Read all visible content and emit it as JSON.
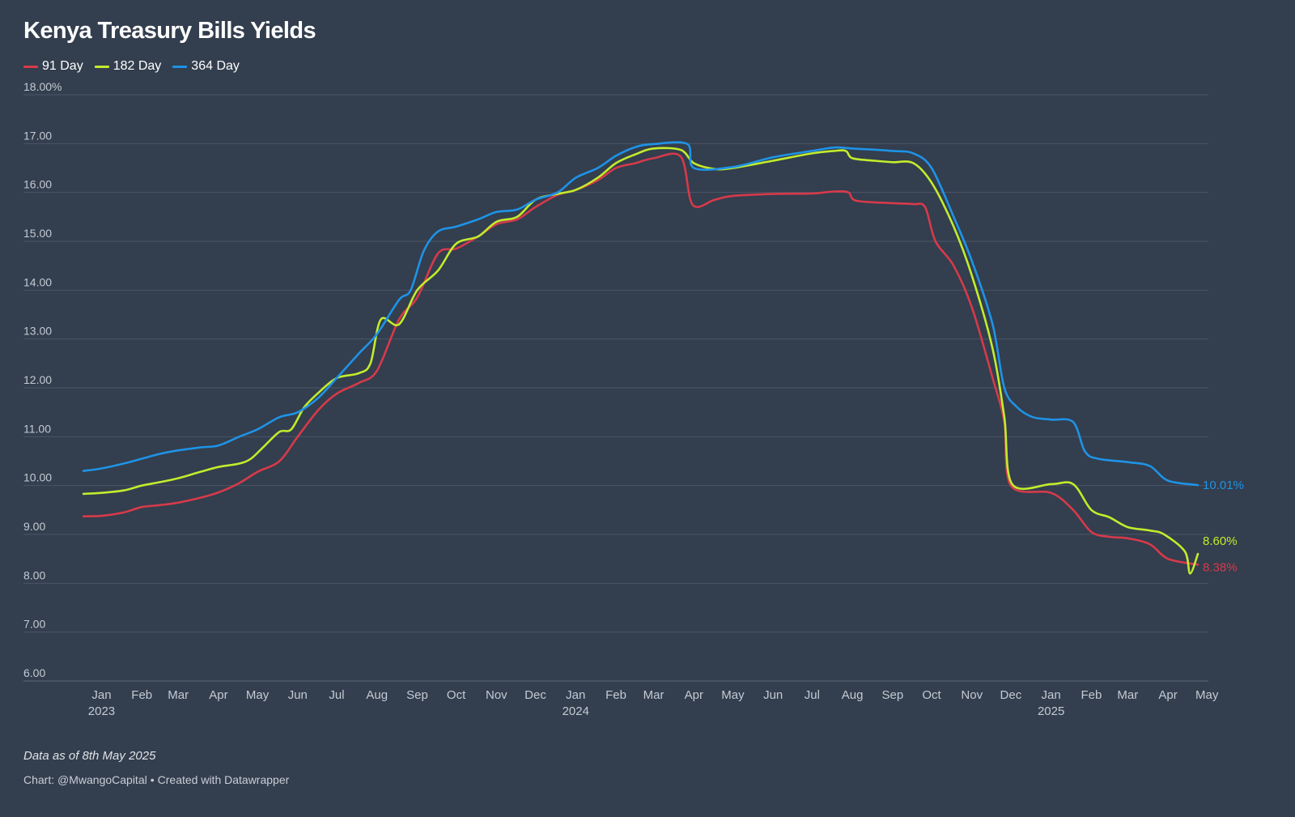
{
  "title": "Kenya Treasury Bills Yields",
  "note": "Data as of 8th May 2025",
  "footer": {
    "credit": "Chart: @MwangoCapital",
    "separator": "•",
    "tool": "Created with Datawrapper"
  },
  "colors": {
    "background": "#333e4e",
    "grid": "#4b5665",
    "tick_text": "#c4cad3"
  },
  "chart_data": {
    "type": "line",
    "title": "Kenya Treasury Bills Yields",
    "xlabel": "",
    "ylabel": "",
    "ylim": [
      6,
      18
    ],
    "y_ticks": [
      6,
      7,
      8,
      9,
      10,
      11,
      12,
      13,
      14,
      15,
      16,
      17,
      18
    ],
    "y_tick_labels": [
      "6.00",
      "7.00",
      "8.00",
      "9.00",
      "10.00",
      "11.00",
      "12.00",
      "13.00",
      "14.00",
      "15.00",
      "16.00",
      "17.00",
      "18.00%"
    ],
    "x_range": [
      "2023-01-01",
      "2025-05-08"
    ],
    "x_ticks": [
      {
        "date": "2023-01-15",
        "label": "Jan",
        "year": "2023"
      },
      {
        "date": "2023-02-15",
        "label": "Feb"
      },
      {
        "date": "2023-03-15",
        "label": "Mar"
      },
      {
        "date": "2023-04-15",
        "label": "Apr"
      },
      {
        "date": "2023-05-15",
        "label": "May"
      },
      {
        "date": "2023-06-15",
        "label": "Jun"
      },
      {
        "date": "2023-07-15",
        "label": "Jul"
      },
      {
        "date": "2023-08-15",
        "label": "Aug"
      },
      {
        "date": "2023-09-15",
        "label": "Sep"
      },
      {
        "date": "2023-10-15",
        "label": "Oct"
      },
      {
        "date": "2023-11-15",
        "label": "Nov"
      },
      {
        "date": "2023-12-15",
        "label": "Dec"
      },
      {
        "date": "2024-01-15",
        "label": "Jan",
        "year": "2024"
      },
      {
        "date": "2024-02-15",
        "label": "Feb"
      },
      {
        "date": "2024-03-15",
        "label": "Mar"
      },
      {
        "date": "2024-04-15",
        "label": "Apr"
      },
      {
        "date": "2024-05-15",
        "label": "May"
      },
      {
        "date": "2024-06-15",
        "label": "Jun"
      },
      {
        "date": "2024-07-15",
        "label": "Jul"
      },
      {
        "date": "2024-08-15",
        "label": "Aug"
      },
      {
        "date": "2024-09-15",
        "label": "Sep"
      },
      {
        "date": "2024-10-15",
        "label": "Oct"
      },
      {
        "date": "2024-11-15",
        "label": "Nov"
      },
      {
        "date": "2024-12-15",
        "label": "Dec"
      },
      {
        "date": "2025-01-15",
        "label": "Jan",
        "year": "2025"
      },
      {
        "date": "2025-02-15",
        "label": "Feb"
      },
      {
        "date": "2025-03-15",
        "label": "Mar"
      },
      {
        "date": "2025-04-15",
        "label": "Apr"
      },
      {
        "date": "2025-05-15",
        "label": "May"
      }
    ],
    "grid": true,
    "legend_position": "top-left",
    "series": [
      {
        "name": "91 Day",
        "color": "#d63a4a",
        "end_label": "8.38%",
        "points": [
          [
            "2023-01-01",
            9.37
          ],
          [
            "2023-01-15",
            9.38
          ],
          [
            "2023-02-01",
            9.45
          ],
          [
            "2023-02-15",
            9.56
          ],
          [
            "2023-03-01",
            9.6
          ],
          [
            "2023-03-15",
            9.65
          ],
          [
            "2023-04-01",
            9.75
          ],
          [
            "2023-04-15",
            9.86
          ],
          [
            "2023-05-01",
            10.05
          ],
          [
            "2023-05-15",
            10.28
          ],
          [
            "2023-06-01",
            10.5
          ],
          [
            "2023-06-15",
            11.0
          ],
          [
            "2023-07-01",
            11.55
          ],
          [
            "2023-07-15",
            11.88
          ],
          [
            "2023-08-01",
            12.1
          ],
          [
            "2023-08-15",
            12.35
          ],
          [
            "2023-09-01",
            13.4
          ],
          [
            "2023-09-15",
            13.85
          ],
          [
            "2023-10-01",
            14.75
          ],
          [
            "2023-10-15",
            14.85
          ],
          [
            "2023-11-01",
            15.1
          ],
          [
            "2023-11-15",
            15.35
          ],
          [
            "2023-12-01",
            15.45
          ],
          [
            "2023-12-15",
            15.7
          ],
          [
            "2024-01-01",
            15.95
          ],
          [
            "2024-01-15",
            16.05
          ],
          [
            "2024-02-01",
            16.25
          ],
          [
            "2024-02-15",
            16.5
          ],
          [
            "2024-03-01",
            16.6
          ],
          [
            "2024-03-15",
            16.7
          ],
          [
            "2024-04-05",
            16.73
          ],
          [
            "2024-04-14",
            15.75
          ],
          [
            "2024-05-01",
            15.85
          ],
          [
            "2024-05-15",
            15.93
          ],
          [
            "2024-06-15",
            15.97
          ],
          [
            "2024-07-15",
            15.98
          ],
          [
            "2024-08-01",
            16.02
          ],
          [
            "2024-08-12",
            16.0
          ],
          [
            "2024-08-18",
            15.83
          ],
          [
            "2024-09-15",
            15.78
          ],
          [
            "2024-10-01",
            15.76
          ],
          [
            "2024-10-10",
            15.7
          ],
          [
            "2024-10-18",
            15.0
          ],
          [
            "2024-11-01",
            14.5
          ],
          [
            "2024-11-15",
            13.65
          ],
          [
            "2024-12-01",
            12.2
          ],
          [
            "2024-12-10",
            11.3
          ],
          [
            "2024-12-15",
            10.0
          ],
          [
            "2025-01-15",
            9.85
          ],
          [
            "2025-02-01",
            9.5
          ],
          [
            "2025-02-15",
            9.05
          ],
          [
            "2025-03-01",
            8.95
          ],
          [
            "2025-03-15",
            8.92
          ],
          [
            "2025-04-01",
            8.8
          ],
          [
            "2025-04-15",
            8.5
          ],
          [
            "2025-05-08",
            8.38
          ]
        ]
      },
      {
        "name": "182 Day",
        "color": "#c2ec2c",
        "end_label": "8.60%",
        "points": [
          [
            "2023-01-01",
            9.83
          ],
          [
            "2023-01-15",
            9.85
          ],
          [
            "2023-02-01",
            9.9
          ],
          [
            "2023-02-15",
            10.0
          ],
          [
            "2023-03-01",
            10.07
          ],
          [
            "2023-03-15",
            10.15
          ],
          [
            "2023-04-01",
            10.28
          ],
          [
            "2023-04-15",
            10.38
          ],
          [
            "2023-05-01",
            10.45
          ],
          [
            "2023-05-10",
            10.55
          ],
          [
            "2023-05-20",
            10.8
          ],
          [
            "2023-06-01",
            11.1
          ],
          [
            "2023-06-10",
            11.15
          ],
          [
            "2023-06-20",
            11.6
          ],
          [
            "2023-07-01",
            11.9
          ],
          [
            "2023-07-15",
            12.2
          ],
          [
            "2023-08-01",
            12.3
          ],
          [
            "2023-08-10",
            12.5
          ],
          [
            "2023-08-18",
            13.4
          ],
          [
            "2023-09-01",
            13.3
          ],
          [
            "2023-09-15",
            14.0
          ],
          [
            "2023-10-01",
            14.4
          ],
          [
            "2023-10-15",
            14.95
          ],
          [
            "2023-11-01",
            15.1
          ],
          [
            "2023-11-15",
            15.4
          ],
          [
            "2023-12-01",
            15.5
          ],
          [
            "2023-12-15",
            15.85
          ],
          [
            "2024-01-01",
            15.97
          ],
          [
            "2024-01-15",
            16.05
          ],
          [
            "2024-02-01",
            16.3
          ],
          [
            "2024-02-15",
            16.6
          ],
          [
            "2024-03-01",
            16.78
          ],
          [
            "2024-03-15",
            16.9
          ],
          [
            "2024-04-05",
            16.87
          ],
          [
            "2024-04-15",
            16.6
          ],
          [
            "2024-05-01",
            16.48
          ],
          [
            "2024-05-15",
            16.5
          ],
          [
            "2024-06-15",
            16.65
          ],
          [
            "2024-07-15",
            16.8
          ],
          [
            "2024-08-01",
            16.85
          ],
          [
            "2024-08-10",
            16.85
          ],
          [
            "2024-08-15",
            16.7
          ],
          [
            "2024-09-01",
            16.65
          ],
          [
            "2024-09-15",
            16.62
          ],
          [
            "2024-10-01",
            16.6
          ],
          [
            "2024-10-15",
            16.2
          ],
          [
            "2024-11-01",
            15.3
          ],
          [
            "2024-11-15",
            14.3
          ],
          [
            "2024-12-01",
            12.8
          ],
          [
            "2024-12-10",
            11.4
          ],
          [
            "2024-12-16",
            10.03
          ],
          [
            "2025-01-15",
            10.03
          ],
          [
            "2025-02-01",
            10.03
          ],
          [
            "2025-02-15",
            9.5
          ],
          [
            "2025-03-01",
            9.35
          ],
          [
            "2025-03-15",
            9.15
          ],
          [
            "2025-04-01",
            9.08
          ],
          [
            "2025-04-12",
            9.0
          ],
          [
            "2025-04-28",
            8.65
          ],
          [
            "2025-05-02",
            8.2
          ],
          [
            "2025-05-08",
            8.6
          ]
        ]
      },
      {
        "name": "364 Day",
        "color": "#1e93e6",
        "end_label": "10.01%",
        "points": [
          [
            "2023-01-01",
            10.3
          ],
          [
            "2023-01-15",
            10.35
          ],
          [
            "2023-02-01",
            10.45
          ],
          [
            "2023-02-15",
            10.55
          ],
          [
            "2023-03-01",
            10.65
          ],
          [
            "2023-03-15",
            10.72
          ],
          [
            "2023-04-01",
            10.78
          ],
          [
            "2023-04-15",
            10.82
          ],
          [
            "2023-05-01",
            11.0
          ],
          [
            "2023-05-15",
            11.15
          ],
          [
            "2023-06-01",
            11.4
          ],
          [
            "2023-06-15",
            11.5
          ],
          [
            "2023-07-01",
            11.8
          ],
          [
            "2023-07-15",
            12.2
          ],
          [
            "2023-08-01",
            12.7
          ],
          [
            "2023-08-15",
            13.1
          ],
          [
            "2023-09-01",
            13.8
          ],
          [
            "2023-09-10",
            14.0
          ],
          [
            "2023-09-20",
            14.8
          ],
          [
            "2023-10-01",
            15.2
          ],
          [
            "2023-10-15",
            15.3
          ],
          [
            "2023-11-01",
            15.45
          ],
          [
            "2023-11-15",
            15.6
          ],
          [
            "2023-12-01",
            15.65
          ],
          [
            "2023-12-15",
            15.85
          ],
          [
            "2024-01-01",
            16.0
          ],
          [
            "2024-01-15",
            16.3
          ],
          [
            "2024-02-01",
            16.5
          ],
          [
            "2024-02-15",
            16.75
          ],
          [
            "2024-03-01",
            16.93
          ],
          [
            "2024-03-15",
            16.99
          ],
          [
            "2024-04-10",
            16.99
          ],
          [
            "2024-04-15",
            16.5
          ],
          [
            "2024-05-15",
            16.52
          ],
          [
            "2024-06-15",
            16.72
          ],
          [
            "2024-07-15",
            16.85
          ],
          [
            "2024-08-01",
            16.92
          ],
          [
            "2024-08-15",
            16.9
          ],
          [
            "2024-09-15",
            16.85
          ],
          [
            "2024-10-01",
            16.8
          ],
          [
            "2024-10-15",
            16.5
          ],
          [
            "2024-11-01",
            15.5
          ],
          [
            "2024-11-15",
            14.6
          ],
          [
            "2024-12-01",
            13.3
          ],
          [
            "2024-12-10",
            12.0
          ],
          [
            "2024-12-20",
            11.6
          ],
          [
            "2025-01-01",
            11.4
          ],
          [
            "2025-01-15",
            11.35
          ],
          [
            "2025-02-01",
            11.3
          ],
          [
            "2025-02-10",
            10.7
          ],
          [
            "2025-02-20",
            10.55
          ],
          [
            "2025-03-15",
            10.48
          ],
          [
            "2025-04-01",
            10.4
          ],
          [
            "2025-04-15",
            10.1
          ],
          [
            "2025-05-08",
            10.01
          ]
        ]
      }
    ]
  }
}
